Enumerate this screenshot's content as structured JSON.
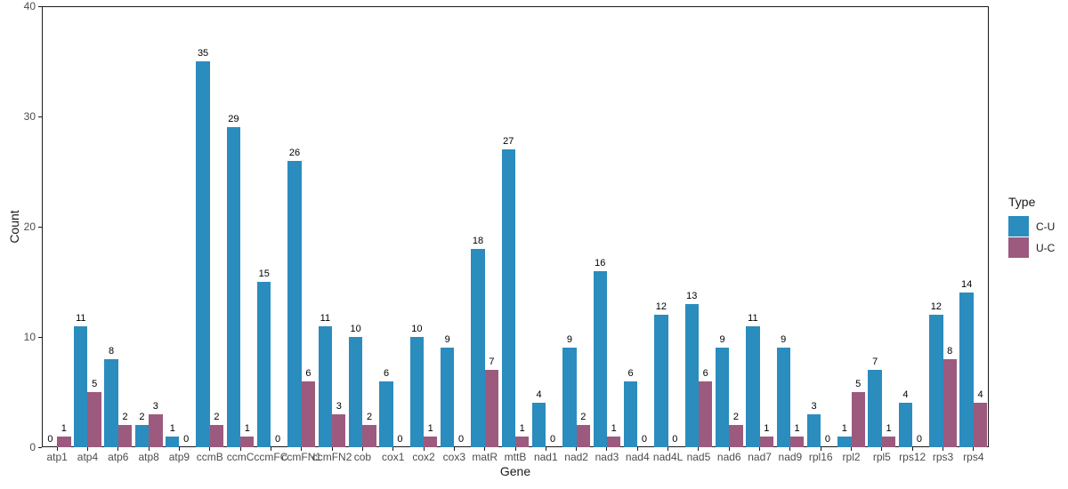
{
  "chart_data": {
    "type": "bar",
    "title": "",
    "xlabel": "Gene",
    "ylabel": "Count",
    "ylim": [
      0,
      40
    ],
    "yticks": [
      0,
      10,
      20,
      30,
      40
    ],
    "grid": false,
    "bar_value_labels": true,
    "legend": {
      "title": "Type",
      "position": "right"
    },
    "categories": [
      "atp1",
      "atp4",
      "atp6",
      "atp8",
      "atp9",
      "ccmB",
      "ccmC",
      "ccmFC",
      "ccmFN1",
      "ccmFN2",
      "cob",
      "cox1",
      "cox2",
      "cox3",
      "matR",
      "mttB",
      "nad1",
      "nad2",
      "nad3",
      "nad4",
      "nad4L",
      "nad5",
      "nad6",
      "nad7",
      "nad9",
      "rpl16",
      "rpl2",
      "rpl5",
      "rps12",
      "rps3",
      "rps4"
    ],
    "series": [
      {
        "name": "C-U",
        "color": "#2b8cbe",
        "values": [
          0,
          11,
          8,
          2,
          1,
          35,
          29,
          15,
          26,
          11,
          10,
          6,
          10,
          9,
          18,
          27,
          4,
          9,
          16,
          6,
          12,
          13,
          9,
          11,
          9,
          3,
          1,
          7,
          4,
          12,
          14
        ]
      },
      {
        "name": "U-C",
        "color": "#9c5a7e",
        "values": [
          1,
          5,
          2,
          3,
          0,
          2,
          1,
          0,
          6,
          3,
          2,
          0,
          1,
          0,
          7,
          1,
          0,
          2,
          1,
          0,
          0,
          6,
          2,
          1,
          1,
          0,
          5,
          1,
          0,
          8,
          4
        ]
      }
    ]
  },
  "colors": {
    "c_u_bar": "#2b8cbe",
    "u_c_bar": "#9c5a7e",
    "axis_line": "#1a1a1a",
    "tick_label": "#4d4d4d",
    "value_label": "#000000",
    "background": "#ffffff"
  }
}
